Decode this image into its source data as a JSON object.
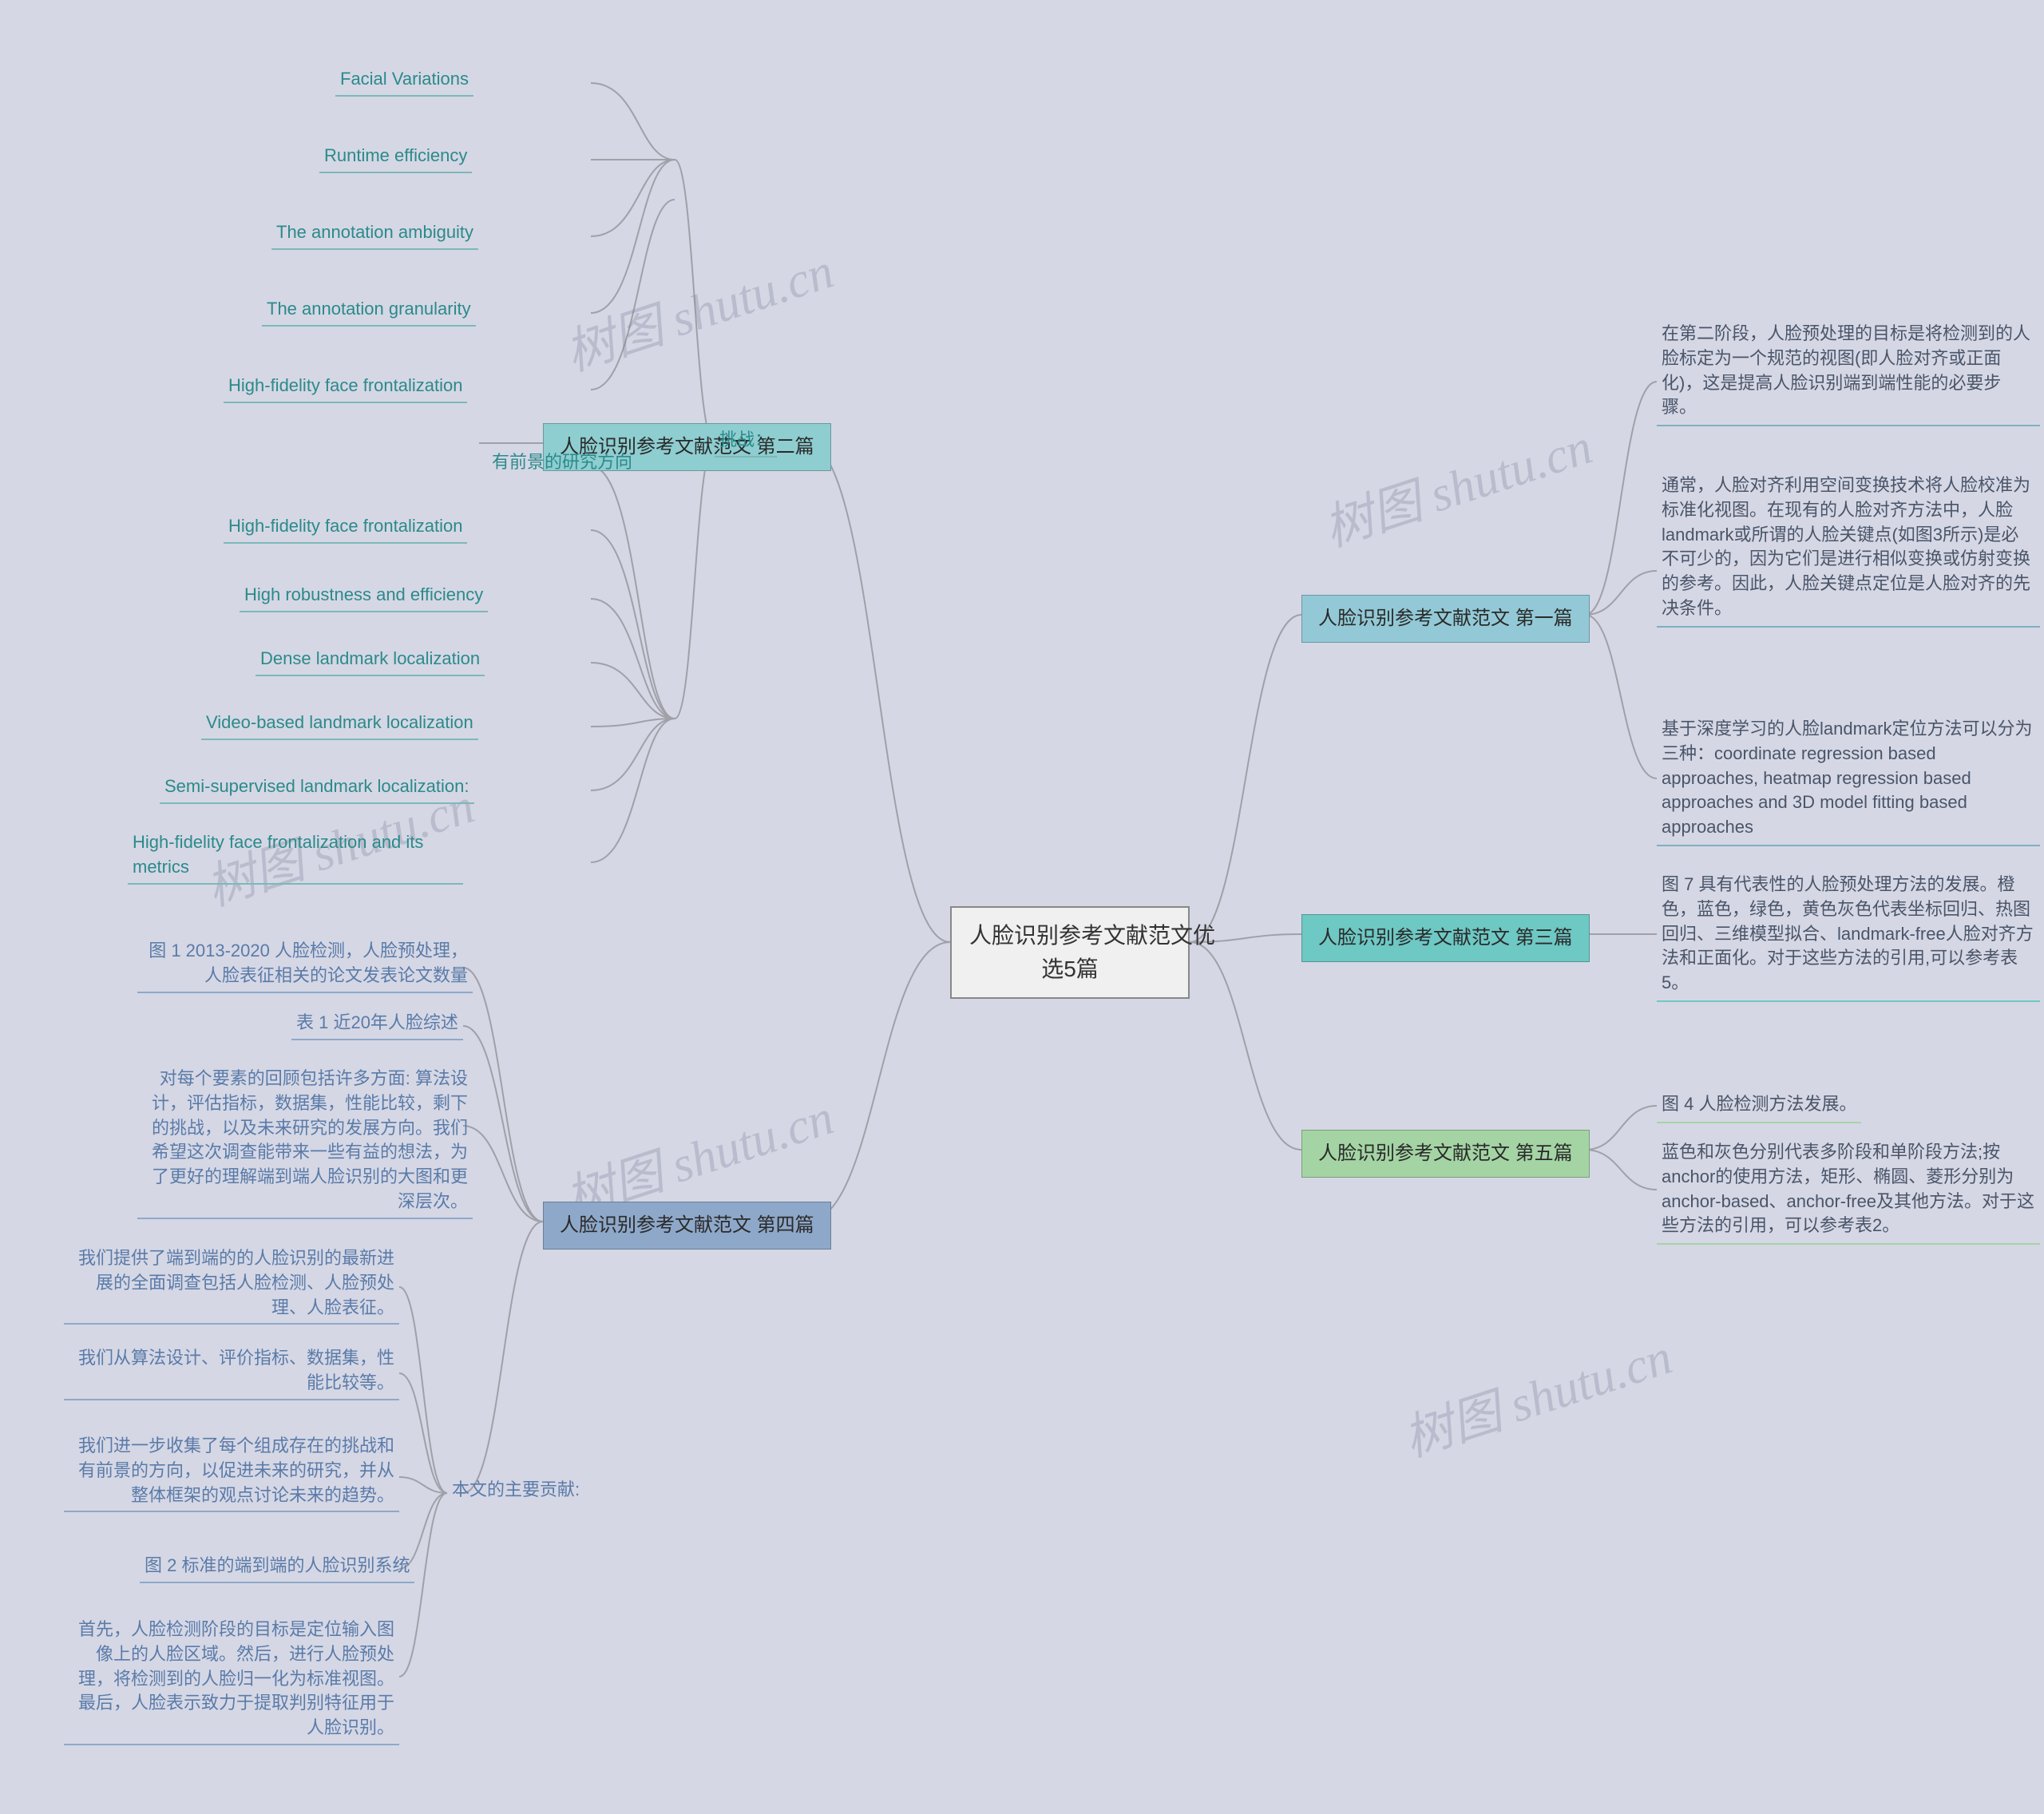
{
  "background_color": "#d5d7e5",
  "watermark_text": "树图 shutu.cn",
  "watermark_color": "rgba(120,125,150,0.3)",
  "root": {
    "label": "人脸识别参考文献范文优\n选5篇",
    "bg": "#f0f0f0",
    "border": "#888888"
  },
  "branches": {
    "b1": {
      "label": "人脸识别参考文献范文 第一篇",
      "bg": "#93c9d6",
      "border_bottom": "#4a7f8f"
    },
    "b2": {
      "label": "人脸识别参考文献范文 第二篇",
      "bg": "#8ecdd0",
      "border_bottom": "#4d9a9d"
    },
    "b3": {
      "label": "人脸识别参考文献范文 第三篇",
      "bg": "#6ec8c4",
      "border_bottom": "#3d9b97"
    },
    "b4": {
      "label": "人脸识别参考文献范文 第四篇",
      "bg": "#8ea8c9",
      "border_bottom": "#5a7ba8"
    },
    "b5": {
      "label": "人脸识别参考文献范文 第五篇",
      "bg": "#a4d4a4",
      "border_bottom": "#6aa66a"
    }
  },
  "intermediates": {
    "challenge": {
      "label": "挑战：",
      "color": "#2b8a8a",
      "border": "#7db8b8"
    },
    "future": {
      "label": "有前景的研究方向",
      "color": "#2b8a8a",
      "border": "#7db8b8"
    },
    "contrib": {
      "label": "本文的主要贡献:",
      "color": "#5a7ba8",
      "border": "#8ea8c9"
    }
  },
  "leaves": {
    "b1_1": {
      "text": "在第二阶段，人脸预处理的目标是将检测到的人脸标定为一个规范的视图(即人脸对齐或正面化)，这是提高人脸识别端到端性能的必要步骤。",
      "border": "#7fb0bf"
    },
    "b1_2": {
      "text": "通常，人脸对齐利用空间变换技术将人脸校准为标准化视图。在现有的人脸对齐方法中，人脸landmark或所谓的人脸关键点(如图3所示)是必不可少的，因为它们是进行相似变换或仿射变换的参考。因此，人脸关键点定位是人脸对齐的先决条件。",
      "border": "#7fb0bf"
    },
    "b1_3": {
      "text": "基于深度学习的人脸landmark定位方法可以分为三种：coordinate regression based approaches, heatmap regression based approaches and 3D model fitting based approaches",
      "border": "#7fb0bf"
    },
    "b2_c1": {
      "text": "Facial Variations",
      "border": "#7db8b8"
    },
    "b2_c2": {
      "text": "Runtime efficiency",
      "border": "#7db8b8"
    },
    "b2_c3": {
      "text": "The annotation ambiguity",
      "border": "#7db8b8"
    },
    "b2_c4": {
      "text": "The annotation granularity",
      "border": "#7db8b8"
    },
    "b2_c5": {
      "text": "High-fidelity face frontalization",
      "border": "#7db8b8"
    },
    "b2_f1": {
      "text": "High-fidelity face frontalization",
      "border": "#7db8b8"
    },
    "b2_f2": {
      "text": "High robustness and efficiency",
      "border": "#7db8b8"
    },
    "b2_f3": {
      "text": "Dense landmark localization",
      "border": "#7db8b8"
    },
    "b2_f4": {
      "text": "Video-based landmark localization",
      "border": "#7db8b8"
    },
    "b2_f5": {
      "text": "Semi-supervised landmark localization:",
      "border": "#7db8b8"
    },
    "b2_f6": {
      "text": "High-fidelity face frontalization and its metrics",
      "border": "#7db8b8"
    },
    "b3_1": {
      "text": "图 7 具有代表性的人脸预处理方法的发展。橙色，蓝色，绿色，黄色灰色代表坐标回归、热图回归、三维模型拟合、landmark-free人脸对齐方法和正面化。对于这些方法的引用,可以参考表5。",
      "border": "#6ec8c4"
    },
    "b4_1": {
      "text": "图 1 2013-2020 人脸检测，人脸预处理，人脸表征相关的论文发表论文数量",
      "border": "#8ea8c9"
    },
    "b4_2": {
      "text": "表 1 近20年人脸综述",
      "border": "#8ea8c9"
    },
    "b4_3": {
      "text": "对每个要素的回顾包括许多方面: 算法设计，评估指标，数据集，性能比较，剩下的挑战，以及未来研究的发展方向。我们希望这次调查能带来一些有益的想法，为了更好的理解端到端人脸识别的大图和更深层次。",
      "border": "#8ea8c9"
    },
    "b4_c1": {
      "text": "我们提供了端到端的的人脸识别的最新进展的全面调查包括人脸检测、人脸预处理、人脸表征。",
      "border": "#8ea8c9"
    },
    "b4_c2": {
      "text": "我们从算法设计、评价指标、数据集，性能比较等。",
      "border": "#8ea8c9"
    },
    "b4_c3": {
      "text": "我们进一步收集了每个组成存在的挑战和有前景的方向，以促进未来的研究，并从整体框架的观点讨论未来的趋势。",
      "border": "#8ea8c9"
    },
    "b4_c4": {
      "text": "图 2 标准的端到端的人脸识别系统",
      "border": "#8ea8c9"
    },
    "b4_c5": {
      "text": "首先，人脸检测阶段的目标是定位输入图像上的人脸区域。然后，进行人脸预处理，将检测到的人脸归一化为标准视图。最后，人脸表示致力于提取判别特征用于人脸识别。",
      "border": "#8ea8c9"
    },
    "b5_1": {
      "text": "图 4 人脸检测方法发展。",
      "border": "#a4d4a4"
    },
    "b5_2": {
      "text": "蓝色和灰色分别代表多阶段和单阶段方法;按anchor的使用方法，矩形、椭圆、菱形分别为anchor-based、anchor-free及其他方法。对于这些方法的引用，可以参考表2。",
      "border": "#a4d4a4"
    }
  },
  "connector_color": "#a0a0a8",
  "connector_width": 2
}
